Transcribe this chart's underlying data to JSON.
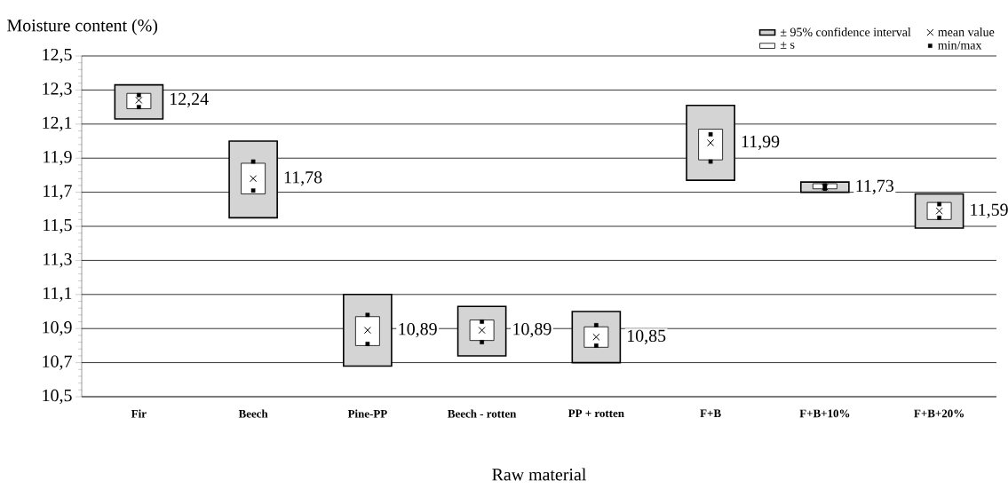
{
  "chart_data": {
    "type": "bar",
    "ylabel": "Moisture content (%)",
    "xlabel": "Raw material",
    "categories": [
      "Fir",
      "Beech",
      "Pine-PP",
      "Beech - rotten",
      "PP + rotten",
      "F+B",
      "F+B+10%",
      "F+B+20%"
    ],
    "series": [
      {
        "name": "± 95% confidence interval",
        "color": "#d4d4d4",
        "base": [
          12.13,
          11.55,
          10.68,
          10.74,
          10.7,
          11.77,
          11.7,
          11.49
        ],
        "values": [
          0.2,
          0.45,
          0.42,
          0.29,
          0.3,
          0.44,
          0.06,
          0.2
        ]
      },
      {
        "name": "± s",
        "color": "#ffffff",
        "base": [
          12.19,
          11.69,
          10.8,
          10.83,
          10.79,
          11.89,
          11.72,
          11.54
        ],
        "values": [
          0.09,
          0.18,
          0.17,
          0.12,
          0.12,
          0.18,
          0.03,
          0.1
        ]
      },
      {
        "name": "mean value",
        "type": "scatter",
        "marker": "cross",
        "color": "#000000",
        "values": [
          12.24,
          11.78,
          10.89,
          10.89,
          10.85,
          11.99,
          11.73,
          11.59
        ],
        "value_labels": [
          "12,24",
          "11,78",
          "10,89",
          "10,89",
          "10,85",
          "11,99",
          "11,73",
          "11,59"
        ]
      },
      {
        "name": "min/max",
        "type": "scatter",
        "marker": "square",
        "color": "#000000",
        "x": [
          "Fir",
          "Fir",
          "Beech",
          "Beech",
          "Pine-PP",
          "Pine-PP",
          "Beech - rotten",
          "Beech - rotten",
          "PP + rotten",
          "PP + rotten",
          "F+B",
          "F+B",
          "F+B+10%",
          "F+B+10%",
          "F+B+20%",
          "F+B+20%"
        ],
        "values": [
          12.2,
          12.27,
          11.71,
          11.88,
          10.81,
          10.98,
          10.82,
          10.94,
          10.8,
          10.92,
          11.88,
          12.04,
          11.72,
          11.74,
          11.55,
          11.63
        ]
      }
    ],
    "ylim": [
      10.5,
      12.5
    ],
    "yticks": [
      {
        "value": 10.5,
        "label": "10,5"
      },
      {
        "value": 10.7,
        "label": "10,7"
      },
      {
        "value": 10.9,
        "label": "10,9"
      },
      {
        "value": 11.1,
        "label": "11,1"
      },
      {
        "value": 11.3,
        "label": "11,3"
      },
      {
        "value": 11.5,
        "label": "11,5"
      },
      {
        "value": 11.7,
        "label": "11,7"
      },
      {
        "value": 11.9,
        "label": "11,9"
      },
      {
        "value": 12.1,
        "label": "12,1"
      },
      {
        "value": 12.3,
        "label": "12,3"
      },
      {
        "value": 12.5,
        "label": "12,5"
      }
    ],
    "grid": "y",
    "legend": "top right"
  }
}
